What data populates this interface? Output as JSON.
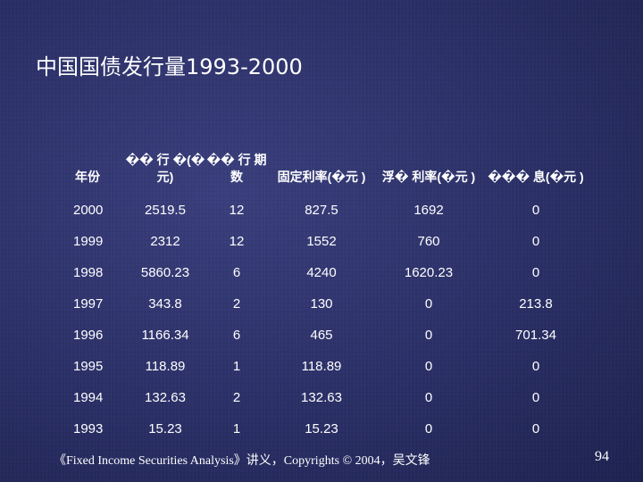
{
  "slide": {
    "title": "中国国债发行量1993-2000",
    "footer": "《Fixed Income Securities Analysis》讲义，Copyrights © 2004，吴文锋",
    "page_number": "94"
  },
  "table": {
    "headers": [
      "年份",
      "�� 行 �(�元)",
      "�� 行 期数",
      "固定利率(�元 )",
      "浮� 利率(�元 )",
      "��� 息(�元 )"
    ],
    "rows": [
      [
        "2000",
        "2519.5",
        "12",
        "827.5",
        "1692",
        "0"
      ],
      [
        "1999",
        "2312",
        "12",
        "1552",
        "760",
        "0"
      ],
      [
        "1998",
        "5860.23",
        "6",
        "4240",
        "1620.23",
        "0"
      ],
      [
        "1997",
        "343.8",
        "2",
        "130",
        "0",
        "213.8"
      ],
      [
        "1996",
        "1166.34",
        "6",
        "465",
        "0",
        "701.34"
      ],
      [
        "1995",
        "118.89",
        "1",
        "118.89",
        "0",
        "0"
      ],
      [
        "1994",
        "132.63",
        "2",
        "132.63",
        "0",
        "0"
      ],
      [
        "1993",
        "15.23",
        "1",
        "15.23",
        "0",
        "0"
      ]
    ]
  }
}
